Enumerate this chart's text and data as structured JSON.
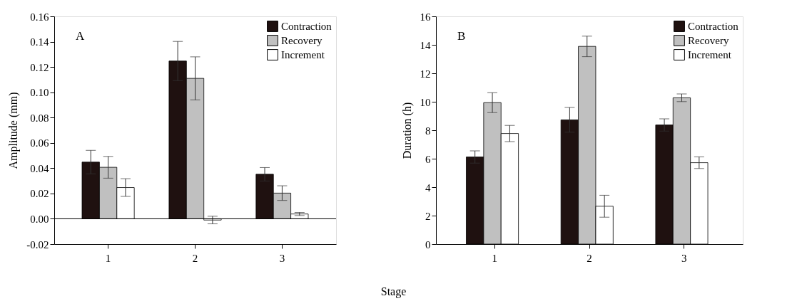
{
  "chart_data": [
    {
      "type": "bar",
      "annotations": [
        "A"
      ],
      "xlabel": "Stage",
      "ylabel": "Amplitude (mm)",
      "categories": [
        "1",
        "2",
        "3"
      ],
      "series": [
        {
          "name": "Contraction",
          "color": "#1f1110",
          "values": [
            0.0448,
            0.1247,
            0.0352
          ],
          "errors": [
            0.0093,
            0.0155,
            0.0053
          ]
        },
        {
          "name": "Recovery",
          "color": "#c0c0c0",
          "values": [
            0.0407,
            0.111,
            0.0203
          ],
          "errors": [
            0.0086,
            0.017,
            0.0058
          ]
        },
        {
          "name": "Increment",
          "color": "#ffffff",
          "values": [
            0.0247,
            -0.001,
            0.0038
          ],
          "errors": [
            0.007,
            0.003,
            0.0012
          ]
        }
      ],
      "ylim": [
        -0.02,
        0.16
      ],
      "yticks": [
        {
          "value": -0.02,
          "label": "-0.02"
        },
        {
          "value": 0,
          "label": "0.00"
        },
        {
          "value": 0.02,
          "label": "0.02"
        },
        {
          "value": 0.04,
          "label": "0.04"
        },
        {
          "value": 0.06,
          "label": "0.06"
        },
        {
          "value": 0.08,
          "label": "0.08"
        },
        {
          "value": 0.1,
          "label": "0.10"
        },
        {
          "value": 0.12,
          "label": "0.12"
        },
        {
          "value": 0.14,
          "label": "0.14"
        },
        {
          "value": 0.16,
          "label": "0.16"
        }
      ],
      "ref_lines": [
        {
          "axis": "y",
          "value": 0,
          "color": "#000000"
        }
      ],
      "legend": "top right",
      "grid": false
    },
    {
      "type": "bar",
      "annotations": [
        "B"
      ],
      "ylabel": "Duration (h)",
      "categories": [
        "1",
        "2",
        "3"
      ],
      "series": [
        {
          "name": "Contraction",
          "color": "#1f1110",
          "values": [
            6.12,
            8.73,
            8.37
          ],
          "errors": [
            0.43,
            0.87,
            0.43
          ]
        },
        {
          "name": "Recovery",
          "color": "#c0c0c0",
          "values": [
            9.94,
            13.89,
            10.28
          ],
          "errors": [
            0.7,
            0.72,
            0.27
          ]
        },
        {
          "name": "Increment",
          "color": "#ffffff",
          "values": [
            7.77,
            2.66,
            5.72
          ],
          "errors": [
            0.57,
            0.77,
            0.41
          ]
        }
      ],
      "ylim": [
        0,
        16
      ],
      "yticks": [
        0,
        2,
        4,
        6,
        8,
        10,
        12,
        14,
        16
      ],
      "legend": "top right",
      "grid": false
    }
  ]
}
